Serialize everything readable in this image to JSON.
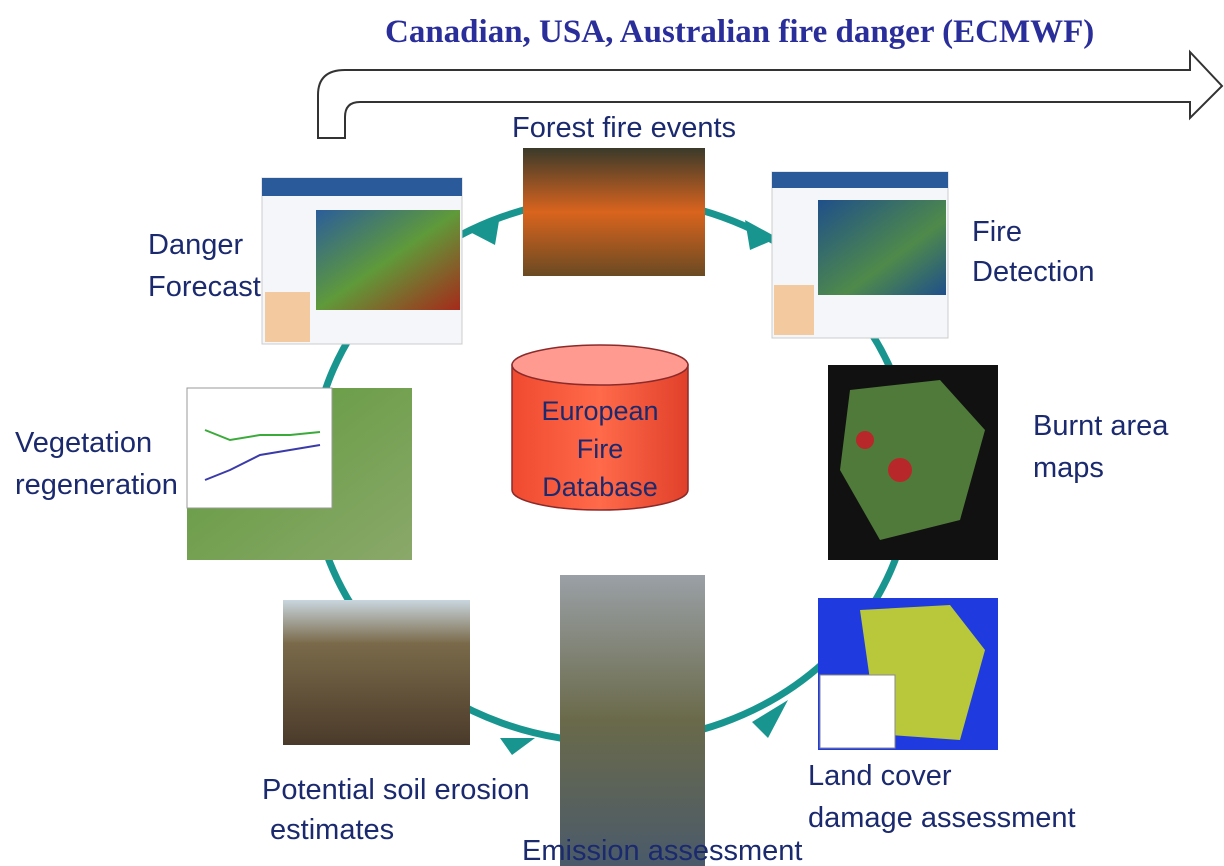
{
  "banner": "Canadian, USA, Australian fire danger  (ECMWF)",
  "center": {
    "lines": [
      "European",
      "Fire",
      "Database"
    ]
  },
  "nodes": [
    {
      "lines": [
        "Forest fire events"
      ]
    },
    {
      "lines": [
        "Danger",
        "Forecast"
      ]
    },
    {
      "lines": [
        "Fire",
        "Detection"
      ]
    },
    {
      "lines": [
        "Burnt area",
        "maps"
      ]
    },
    {
      "lines": [
        "Vegetation",
        "regeneration"
      ]
    },
    {
      "lines": [
        "Land cover",
        "damage assessment"
      ]
    },
    {
      "lines": [
        "Potential soil erosion",
        " estimates"
      ]
    },
    {
      "lines": [
        "Emission assessment"
      ]
    }
  ]
}
